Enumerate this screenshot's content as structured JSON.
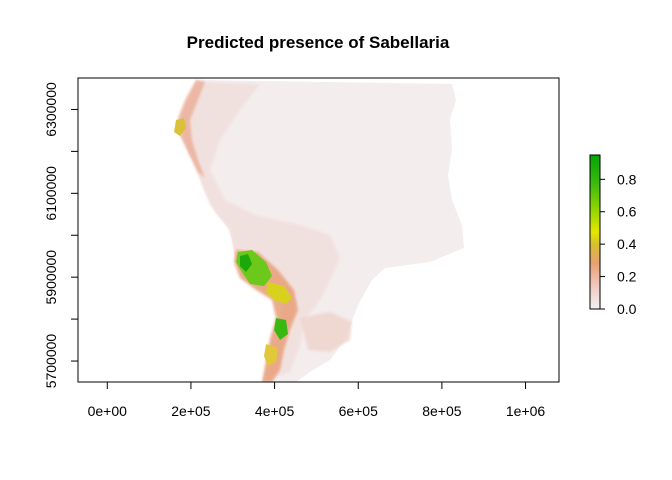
{
  "title": "Predicted presence of  Sabellaria",
  "map": {
    "x_ticks": [
      {
        "value": 0,
        "label": "0e+00"
      },
      {
        "value": 200000,
        "label": "2e+05"
      },
      {
        "value": 400000,
        "label": "4e+05"
      },
      {
        "value": 600000,
        "label": "6e+05"
      },
      {
        "value": 800000,
        "label": "8e+05"
      },
      {
        "value": 1000000,
        "label": "1e+06"
      }
    ],
    "y_ticks": [
      {
        "value": 5700000,
        "label": "5700000"
      },
      {
        "value": 5800000,
        "label": ""
      },
      {
        "value": 5900000,
        "label": "5900000"
      },
      {
        "value": 6000000,
        "label": ""
      },
      {
        "value": 6100000,
        "label": "6100000"
      },
      {
        "value": 6200000,
        "label": ""
      },
      {
        "value": 6300000,
        "label": "6300000"
      }
    ],
    "xlim": [
      -70000,
      1080000
    ],
    "ylim": [
      5650000,
      6375000
    ]
  },
  "legend": {
    "ticks": [
      {
        "value": 0.0,
        "label": "0.0"
      },
      {
        "value": 0.2,
        "label": "0.2"
      },
      {
        "value": 0.4,
        "label": "0.4"
      },
      {
        "value": 0.6,
        "label": "0.6"
      },
      {
        "value": 0.8,
        "label": "0.8"
      }
    ],
    "range": [
      0,
      0.95
    ],
    "colors": [
      "#f2f2f2",
      "#f0c9c0",
      "#e8a070",
      "#d6c030",
      "#e6e600",
      "#8fd400",
      "#3aba10",
      "#00a600"
    ]
  }
}
